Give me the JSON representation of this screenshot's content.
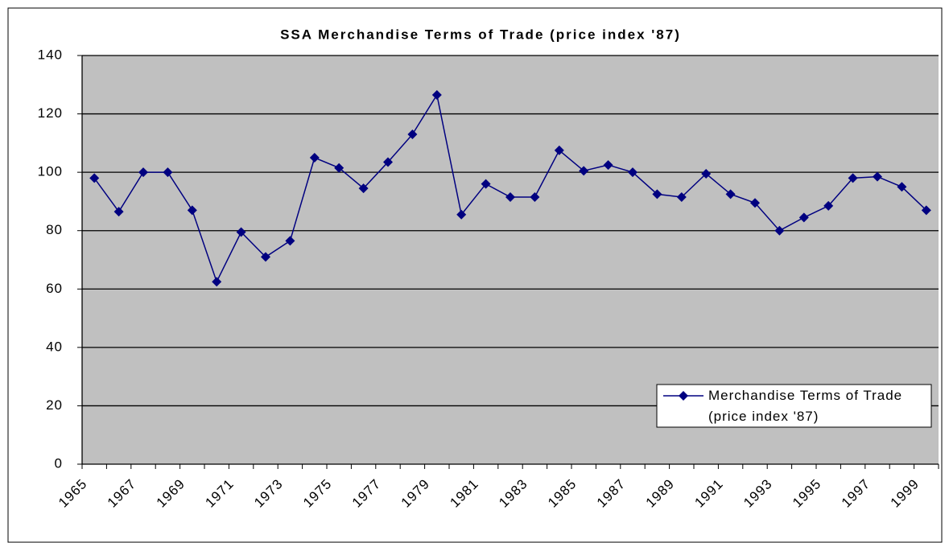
{
  "chart_data": {
    "type": "line",
    "title": "SSA Merchandise Terms of Trade (price index '87)",
    "categories": [
      "1965",
      null,
      "1967",
      null,
      "1969",
      null,
      "1971",
      null,
      "1973",
      null,
      "1975",
      null,
      "1977",
      null,
      "1979",
      null,
      "1981",
      null,
      "1983",
      null,
      "1985",
      null,
      "1987",
      null,
      "1989",
      null,
      "1991",
      null,
      "1993",
      null,
      "1995",
      null,
      "1997",
      null,
      "1999"
    ],
    "series": [
      {
        "name": "Merchandise Terms of Trade (price index '87)",
        "color": "#000080",
        "values": [
          98,
          86.5,
          100,
          100,
          87,
          62.5,
          79.5,
          71,
          76.5,
          105,
          101.5,
          94.5,
          103.5,
          113,
          126.5,
          85.5,
          96,
          91.5,
          91.5,
          107.5,
          100.5,
          102.5,
          100,
          92.5,
          91.5,
          99.5,
          92.5,
          89.5,
          80,
          84.5,
          88.5,
          98,
          98.5,
          95,
          87
        ]
      }
    ],
    "ylim": [
      0,
      140
    ],
    "yticks": [
      0,
      20,
      40,
      60,
      80,
      100,
      120,
      140
    ],
    "grid": true,
    "plot_background": "#c0c0c0",
    "legend": "lower right"
  }
}
